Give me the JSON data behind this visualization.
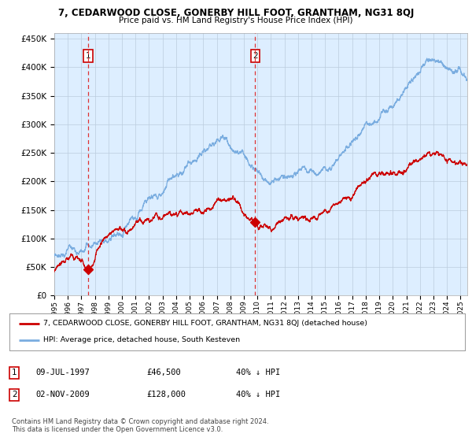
{
  "title": "7, CEDARWOOD CLOSE, GONERBY HILL FOOT, GRANTHAM, NG31 8QJ",
  "subtitle": "Price paid vs. HM Land Registry's House Price Index (HPI)",
  "legend_line1": "7, CEDARWOOD CLOSE, GONERBY HILL FOOT, GRANTHAM, NG31 8QJ (detached house)",
  "legend_line2": "HPI: Average price, detached house, South Kesteven",
  "sale1_label": "1",
  "sale1_date": "09-JUL-1997",
  "sale1_price": "£46,500",
  "sale1_hpi": "40% ↓ HPI",
  "sale2_label": "2",
  "sale2_date": "02-NOV-2009",
  "sale2_price": "£128,000",
  "sale2_hpi": "40% ↓ HPI",
  "footer": "Contains HM Land Registry data © Crown copyright and database right 2024.\nThis data is licensed under the Open Government Licence v3.0.",
  "sale1_year": 1997.52,
  "sale1_value": 46500,
  "sale2_year": 2009.84,
  "sale2_value": 128000,
  "red_line_color": "#cc0000",
  "blue_line_color": "#7aade0",
  "background_color": "#ddeeff",
  "grid_color": "#bbccdd",
  "dashed_line_color": "#dd3333",
  "ylim": [
    0,
    460000
  ],
  "xlim_start": 1995.0,
  "xlim_end": 2025.5
}
